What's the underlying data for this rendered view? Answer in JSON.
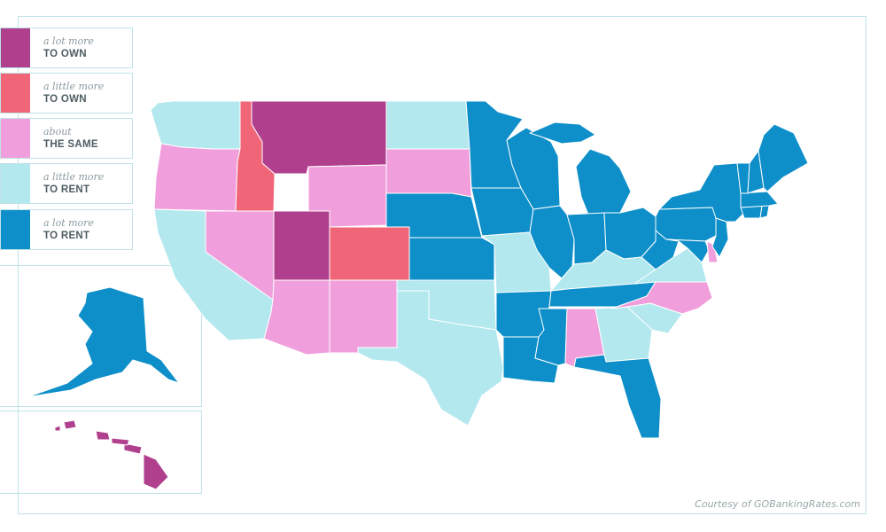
{
  "colors": {
    "a_lot_more_to_own": "#b0408e",
    "a_little_more_to_own": "#f06577",
    "about_the_same": "#f09fdc",
    "a_little_more_to_rent": "#b2e8ee",
    "a_lot_more_to_rent": "#0e8fc9"
  },
  "legend": [
    {
      "line1": "a lot more",
      "line2": "TO OWN",
      "category": "a_lot_more_to_own"
    },
    {
      "line1": "a little more",
      "line2": "TO OWN",
      "category": "a_little_more_to_own"
    },
    {
      "line1": "about",
      "line2": "THE SAME",
      "category": "about_the_same"
    },
    {
      "line1": "a little more",
      "line2": "TO RENT",
      "category": "a_little_more_to_rent"
    },
    {
      "line1": "a lot more",
      "line2": "TO RENT",
      "category": "a_lot_more_to_rent"
    }
  ],
  "credit": "Courtesy of GOBankingRates.com",
  "states": {
    "WA": "a_little_more_to_rent",
    "OR": "about_the_same",
    "CA": "a_little_more_to_rent",
    "ID": "a_little_more_to_own",
    "NV": "about_the_same",
    "MT": "a_lot_more_to_own",
    "WY": "about_the_same",
    "UT": "a_lot_more_to_own",
    "CO": "a_little_more_to_own",
    "AZ": "about_the_same",
    "NM": "about_the_same",
    "ND": "a_little_more_to_rent",
    "SD": "about_the_same",
    "NE": "a_lot_more_to_rent",
    "KS": "a_lot_more_to_rent",
    "OK": "a_little_more_to_rent",
    "TX": "a_little_more_to_rent",
    "MN": "a_lot_more_to_rent",
    "IA": "a_lot_more_to_rent",
    "MO": "a_little_more_to_rent",
    "AR": "a_lot_more_to_rent",
    "LA": "a_lot_more_to_rent",
    "WI": "a_lot_more_to_rent",
    "IL": "a_lot_more_to_rent",
    "MI": "a_lot_more_to_rent",
    "IN": "a_lot_more_to_rent",
    "OH": "a_lot_more_to_rent",
    "KY": "a_little_more_to_rent",
    "TN": "a_lot_more_to_rent",
    "MS": "a_lot_more_to_rent",
    "AL": "about_the_same",
    "GA": "a_little_more_to_rent",
    "FL": "a_lot_more_to_rent",
    "SC": "a_little_more_to_rent",
    "NC": "about_the_same",
    "VA": "a_little_more_to_rent",
    "WV": "a_lot_more_to_rent",
    "PA": "a_lot_more_to_rent",
    "NY": "a_lot_more_to_rent",
    "NJ": "a_lot_more_to_rent",
    "DE": "about_the_same",
    "MD": "a_lot_more_to_rent",
    "VT": "a_lot_more_to_rent",
    "NH": "a_lot_more_to_rent",
    "ME": "a_lot_more_to_rent",
    "MA": "a_lot_more_to_rent",
    "CT": "a_lot_more_to_rent",
    "RI": "a_lot_more_to_rent",
    "AK": "a_lot_more_to_rent",
    "HI": "a_lot_more_to_own"
  }
}
